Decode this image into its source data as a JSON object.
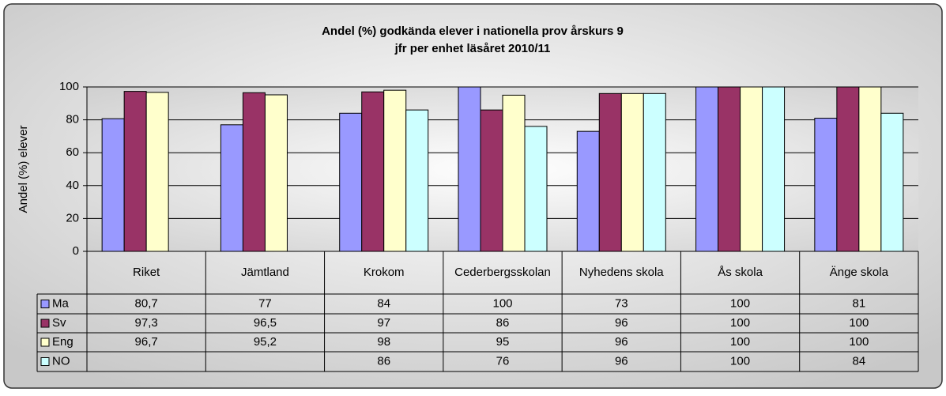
{
  "chart_data": {
    "type": "bar",
    "title": "Andel (%) godkända elever i nationella prov årskurs 9",
    "subtitle": "jfr per enhet läsåret 2010/11",
    "y_label": "Andel (%) elever",
    "categories": [
      "Riket",
      "Jämtland",
      "Krokom",
      "Cederbergsskolan",
      "Nyhedens skola",
      "Ås skola",
      "Änge skola"
    ],
    "series": [
      {
        "name": "Ma",
        "color": "#9999ff",
        "values": [
          80.7,
          77,
          84,
          100,
          73,
          100,
          81
        ],
        "value_labels": [
          "80,7",
          "77",
          "84",
          "100",
          "73",
          "100",
          "81"
        ]
      },
      {
        "name": "Sv",
        "color": "#993366",
        "values": [
          97.3,
          96.5,
          97,
          86,
          96,
          100,
          100
        ],
        "value_labels": [
          "97,3",
          "96,5",
          "97",
          "86",
          "96",
          "100",
          "100"
        ]
      },
      {
        "name": "Eng",
        "color": "#ffffcc",
        "values": [
          96.7,
          95.2,
          98,
          95,
          96,
          100,
          100
        ],
        "value_labels": [
          "96,7",
          "95,2",
          "98",
          "95",
          "96",
          "100",
          "100"
        ]
      },
      {
        "name": "NO",
        "color": "#ccffff",
        "values": [
          null,
          null,
          86,
          76,
          96,
          100,
          84
        ],
        "value_labels": [
          null,
          null,
          "86",
          "76",
          "96",
          "100",
          "84"
        ]
      }
    ],
    "ylim": [
      0,
      100
    ],
    "yticks": [
      0,
      20,
      40,
      60,
      80,
      100
    ],
    "grid": true
  }
}
